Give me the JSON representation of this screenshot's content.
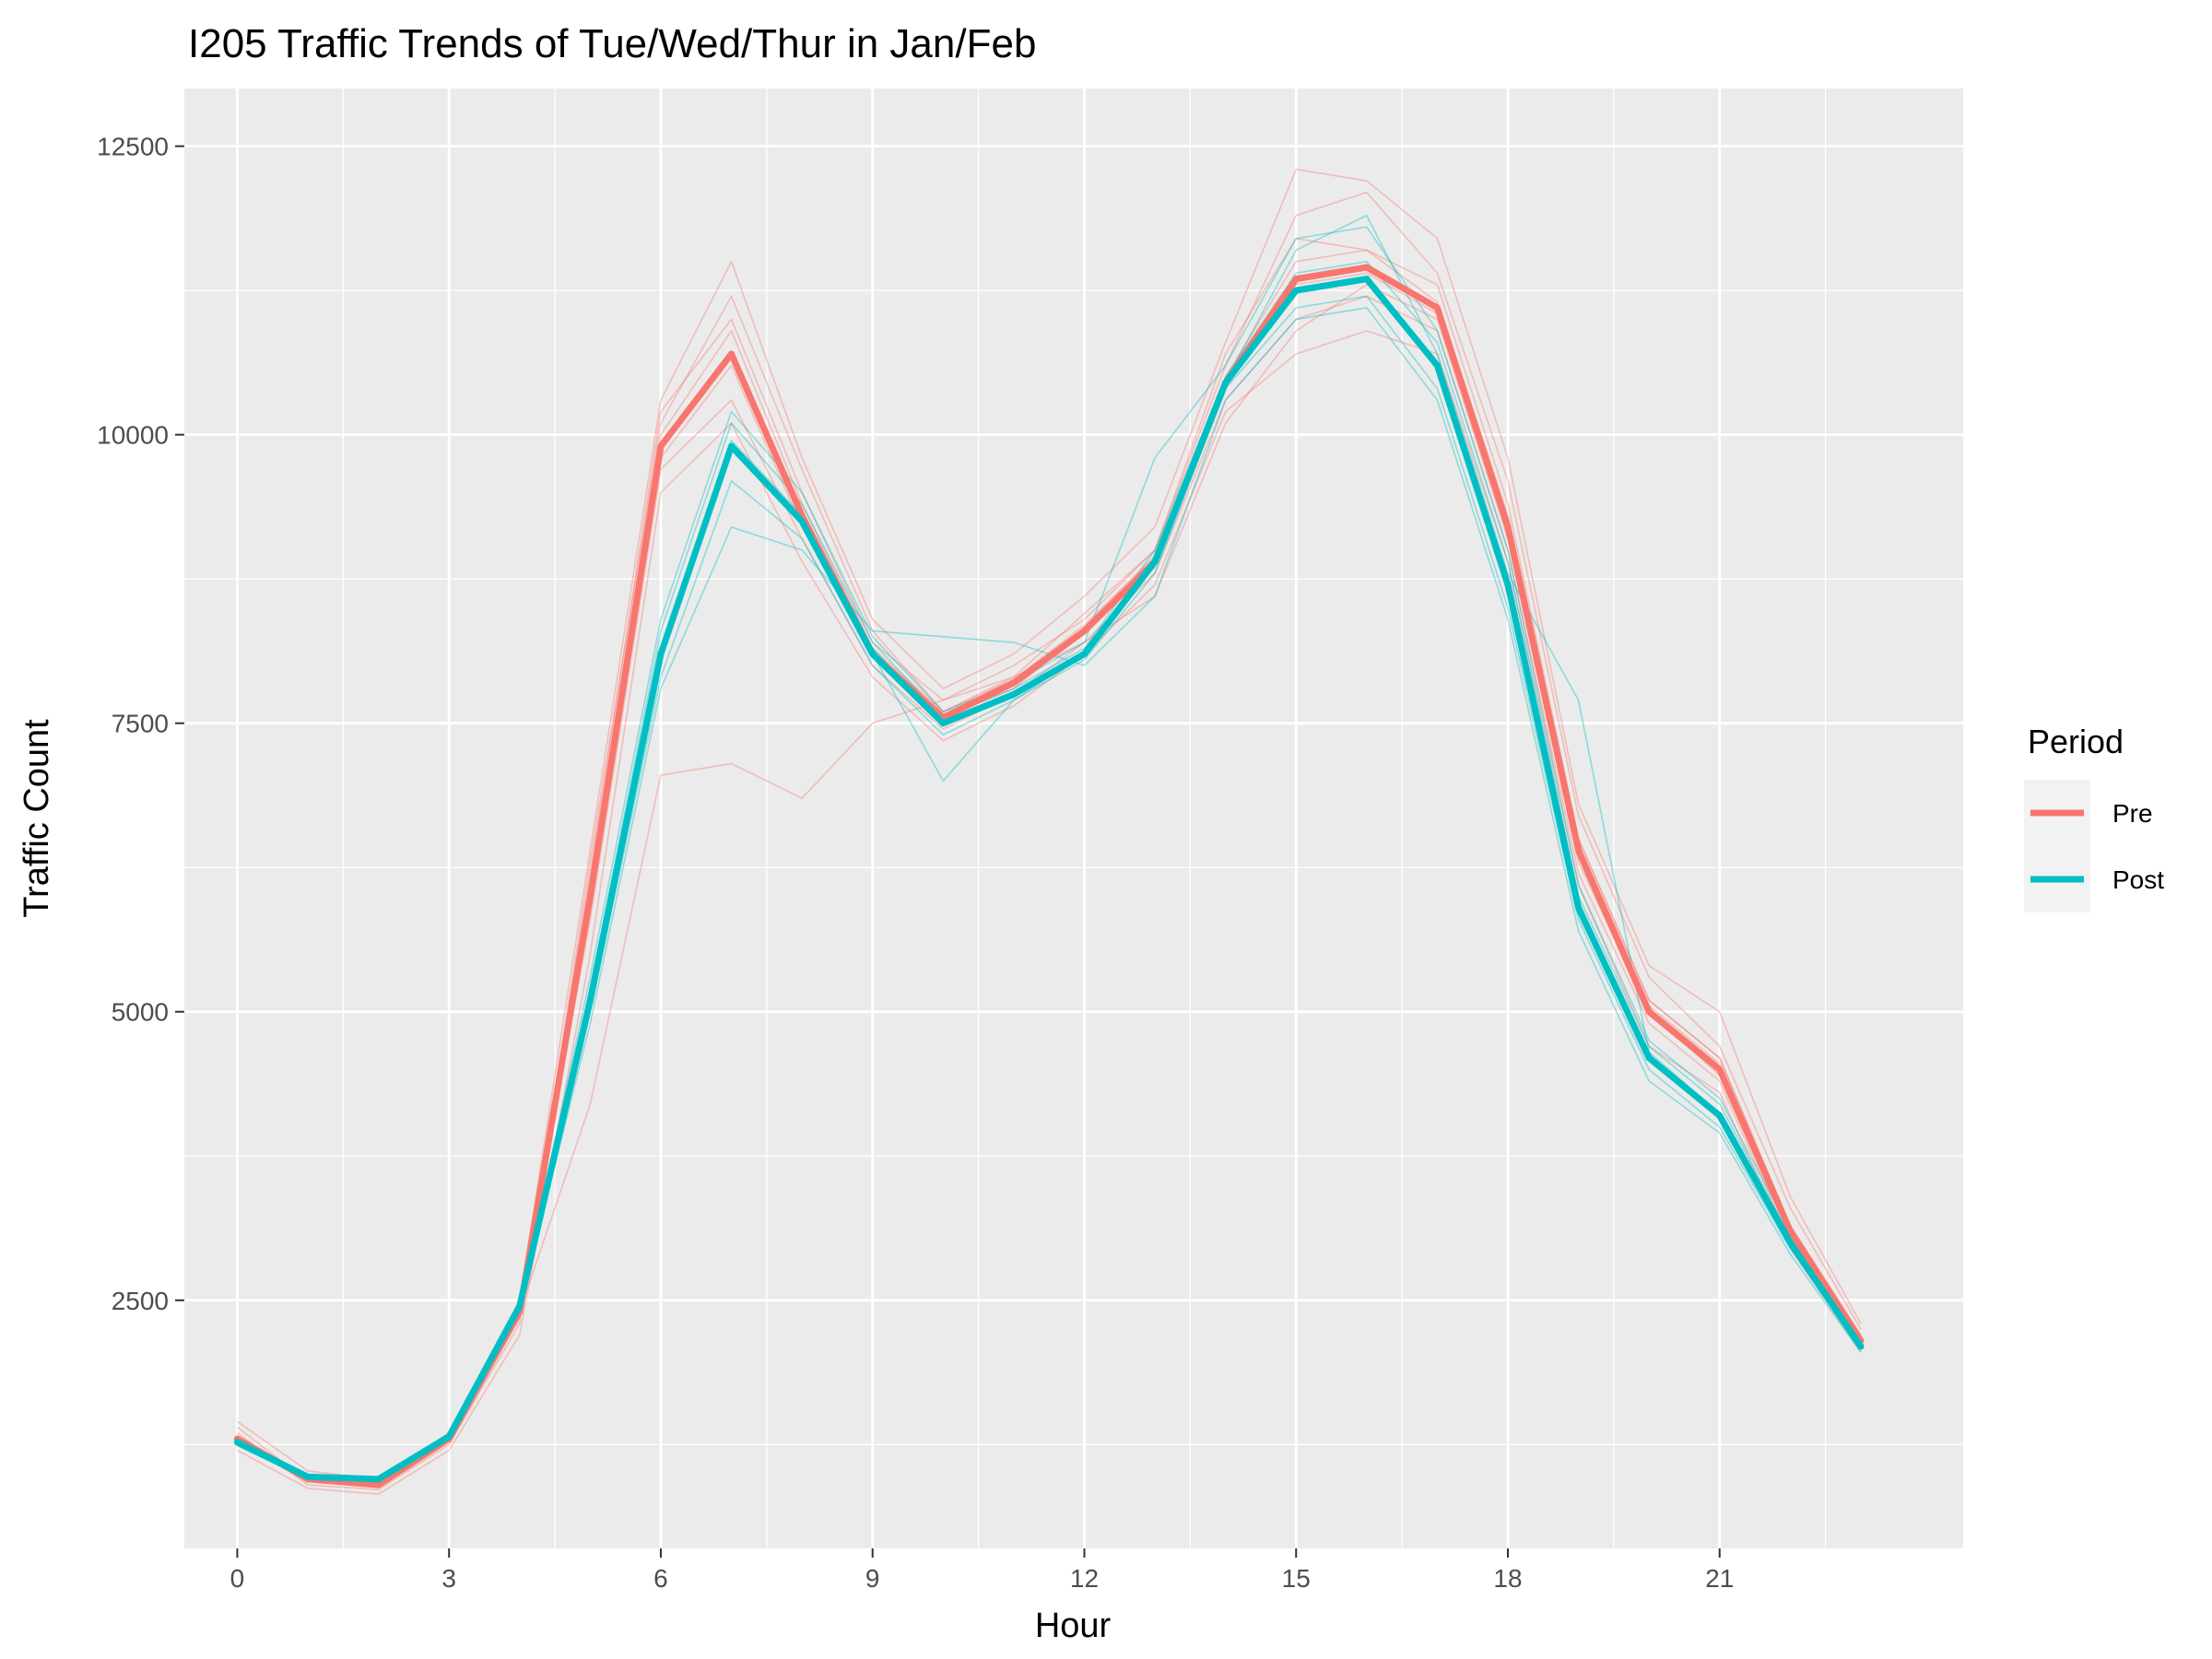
{
  "chart_data": {
    "type": "line",
    "title": "I205 Traffic Trends of Tue/Wed/Thur in Jan/Feb",
    "xlabel": "Hour",
    "ylabel": "Traffic Count",
    "xlim": [
      -0.75,
      24.45
    ],
    "ylim": [
      350,
      13000
    ],
    "x_ticks": [
      0,
      3,
      6,
      9,
      12,
      15,
      18,
      21
    ],
    "x_tick_labels": [
      "0",
      "3",
      "6",
      "9",
      "12",
      "15",
      "18",
      "21"
    ],
    "y_ticks": [
      2500,
      5000,
      7500,
      10000,
      12500
    ],
    "y_tick_labels": [
      "2500",
      "5000",
      "7500",
      "10000",
      "12500"
    ],
    "grid": true,
    "legend": {
      "title": "Period",
      "position": "right"
    },
    "x": [
      0,
      1,
      2,
      3,
      4,
      5,
      6,
      7,
      8,
      9,
      10,
      11,
      12,
      13,
      14,
      15,
      16,
      17,
      18,
      19,
      20,
      21,
      22,
      23
    ],
    "series": [
      {
        "name": "Pre",
        "color": "#F8766D",
        "values": [
          1300,
          950,
          900,
          1300,
          2400,
          6000,
          9900,
          10700,
          9300,
          8100,
          7550,
          7850,
          8300,
          8900,
          10450,
          11350,
          11450,
          11100,
          9200,
          6400,
          5000,
          4500,
          3100,
          2150
        ]
      },
      {
        "name": "Post",
        "color": "#00BFC4",
        "values": [
          1270,
          970,
          950,
          1320,
          2450,
          5100,
          8100,
          9900,
          9250,
          8100,
          7500,
          7750,
          8100,
          8900,
          10450,
          11250,
          11350,
          10600,
          8700,
          5900,
          4600,
          4100,
          3000,
          2100
        ]
      }
    ],
    "faint_daily_lines": {
      "Pre": [
        [
          1350,
          900,
          860,
          1250,
          2300,
          6300,
          10100,
          11200,
          9700,
          8300,
          7600,
          7900,
          8450,
          9000,
          10600,
          11900,
          12100,
          11400,
          9600,
          6700,
          5300,
          4700,
          3300,
          2250
        ],
        [
          1250,
          980,
          920,
          1330,
          2450,
          5800,
          9700,
          10300,
          9100,
          8000,
          7450,
          7750,
          8200,
          8800,
          10300,
          11000,
          11200,
          10900,
          9000,
          6200,
          4900,
          4400,
          3000,
          2100
        ],
        [
          1400,
          930,
          900,
          1280,
          2350,
          6200,
          10200,
          11000,
          9500,
          8200,
          7700,
          8000,
          8400,
          9000,
          10700,
          11700,
          11600,
          11300,
          9400,
          6500,
          5100,
          4600,
          3150,
          2200
        ],
        [
          1200,
          870,
          820,
          1200,
          2200,
          5500,
          9500,
          10100,
          8900,
          7900,
          7350,
          7650,
          8100,
          8700,
          10200,
          10700,
          10900,
          10700,
          8900,
          6100,
          4700,
          4300,
          2950,
          2050
        ],
        [
          1300,
          950,
          880,
          1300,
          2400,
          4200,
          7050,
          7150,
          6850,
          7500,
          7700,
          7900,
          8200,
          8600,
          10100,
          10900,
          11300,
          11000,
          9100,
          6300,
          5000,
          4450,
          3050,
          2150
        ],
        [
          1450,
          1020,
          950,
          1350,
          2500,
          6400,
          10300,
          11500,
          9800,
          8400,
          7800,
          8100,
          8600,
          9200,
          10800,
          12300,
          12200,
          11700,
          9800,
          6800,
          5400,
          5000,
          3400,
          2300
        ],
        [
          1280,
          960,
          910,
          1290,
          2380,
          6000,
          9800,
          10600,
          9200,
          8100,
          7550,
          7800,
          8300,
          8850,
          10400,
          11300,
          11400,
          11050,
          9250,
          6450,
          5050,
          4550,
          3100,
          2150
        ],
        [
          1320,
          940,
          890,
          1310,
          2420,
          6100,
          10000,
          10900,
          9400,
          8150,
          7600,
          7880,
          8350,
          8950,
          10500,
          11500,
          11600,
          11150,
          9300,
          6500,
          5100,
          4600,
          3150,
          2180
        ]
      ],
      "Post": [
        [
          1250,
          980,
          960,
          1340,
          2470,
          5200,
          8300,
          10100,
          9400,
          8200,
          7550,
          7800,
          8150,
          9000,
          10500,
          11400,
          11500,
          10800,
          8900,
          6000,
          4700,
          4200,
          3050,
          2120
        ],
        [
          1290,
          960,
          940,
          1300,
          2430,
          5000,
          7900,
          9600,
          9100,
          8000,
          7400,
          7700,
          8050,
          8800,
          10400,
          11100,
          11200,
          10400,
          8500,
          5800,
          4500,
          4000,
          2950,
          2080
        ],
        [
          1310,
          990,
          970,
          1330,
          2460,
          5300,
          8400,
          10200,
          9500,
          8250,
          7600,
          7850,
          8200,
          9800,
          10600,
          11700,
          11800,
          10900,
          9000,
          6100,
          4750,
          4250,
          3100,
          2140
        ],
        [
          1240,
          950,
          930,
          1310,
          2440,
          4900,
          7800,
          9200,
          9000,
          8300,
          8250,
          8200,
          8000,
          8600,
          10300,
          11000,
          11100,
          10300,
          8400,
          5700,
          4400,
          3950,
          2900,
          2050
        ],
        [
          1270,
          970,
          950,
          1320,
          2450,
          5100,
          8100,
          9900,
          9250,
          8100,
          7000,
          7700,
          8100,
          8900,
          10450,
          11250,
          11350,
          10600,
          8700,
          5900,
          4600,
          4100,
          3000,
          2100
        ],
        [
          1280,
          975,
          955,
          1325,
          2455,
          5150,
          8150,
          9950,
          9300,
          8150,
          7500,
          7760,
          8120,
          8920,
          10460,
          11600,
          11900,
          10700,
          8800,
          7700,
          4650,
          4120,
          3020,
          2110
        ]
      ]
    }
  }
}
